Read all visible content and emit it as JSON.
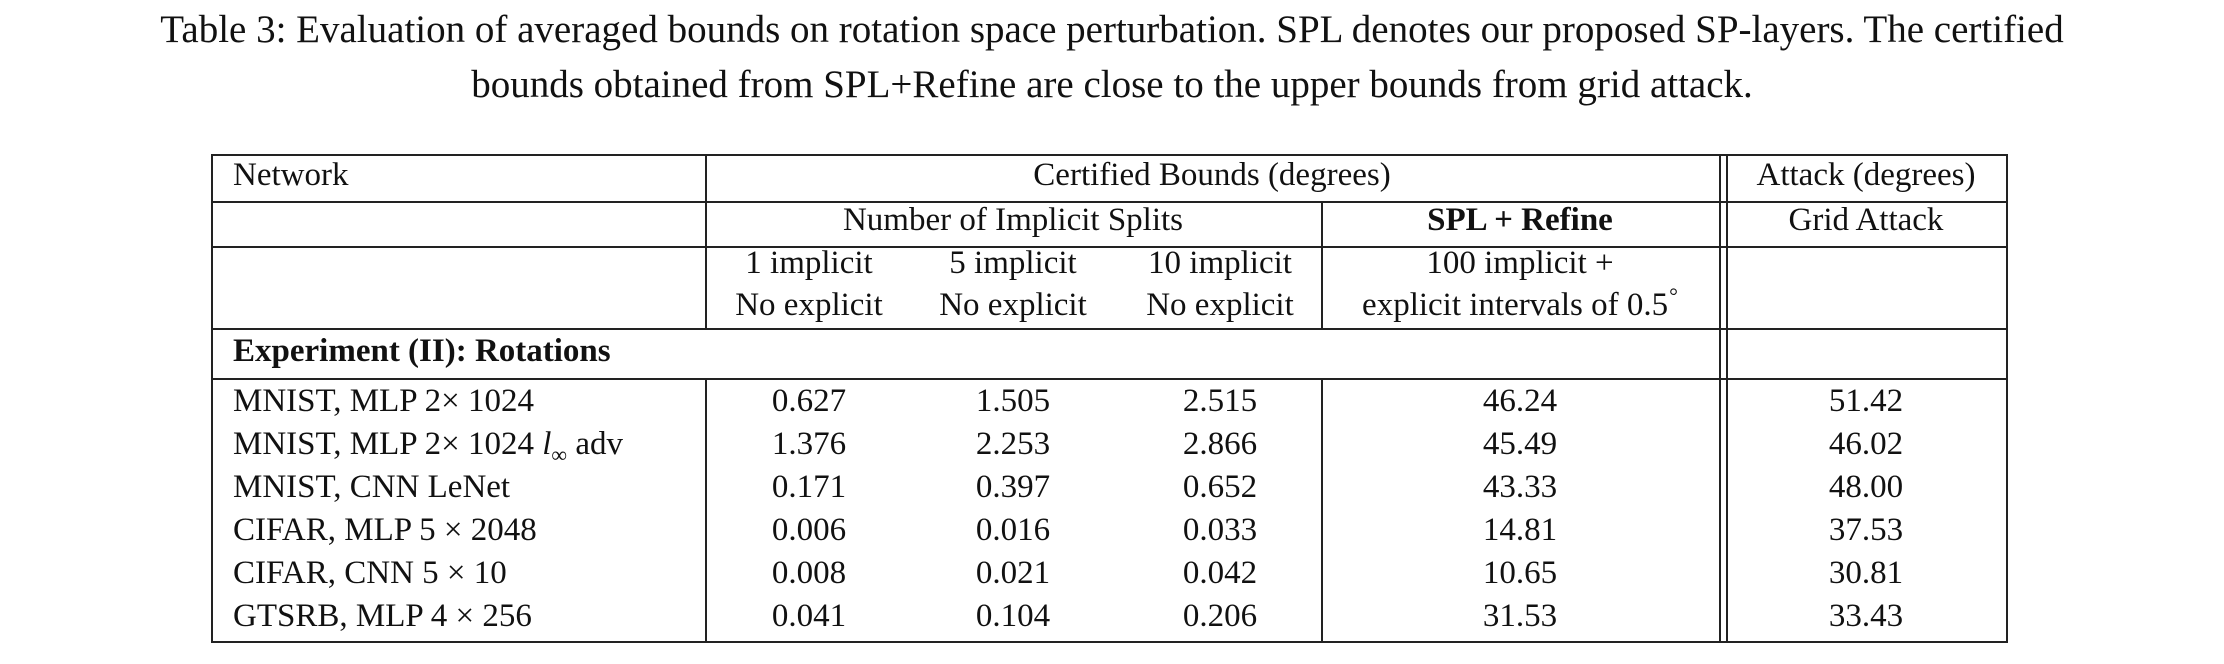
{
  "caption": {
    "line1": "Table 3: Evaluation of averaged bounds on rotation space perturbation. SPL denotes our proposed SP-layers. The certified",
    "line2": "bounds obtained from SPL+Refine are close to the upper bounds from grid attack."
  },
  "header": {
    "network": "Network",
    "certified": "Certified Bounds (degrees)",
    "attack": "Attack (degrees)",
    "implicit_splits": "Number of Implicit Splits",
    "spl_refine": "SPL + Refine",
    "grid_attack": "Grid Attack",
    "col1_line1": "1 implicit",
    "col2_line1": "5 implicit",
    "col3_line1": "10 implicit",
    "no_explicit": "No explicit",
    "col4_line1": "100 implicit +",
    "col4_line2": "explicit intervals of 0.5",
    "degree_sign": "°"
  },
  "section_title": "Experiment (II): Rotations",
  "rows": [
    {
      "network": "MNIST, MLP 2× 1024",
      "v1": "0.627",
      "v2": "1.505",
      "v3": "2.515",
      "spl": "46.24",
      "attack": "51.42"
    },
    {
      "network_prefix": "MNIST, MLP 2× 1024 ",
      "network_l": "l",
      "network_sub": "∞",
      "network_suffix": " adv",
      "v1": "1.376",
      "v2": "2.253",
      "v3": "2.866",
      "spl": "45.49",
      "attack": "46.02"
    },
    {
      "network": "MNIST, CNN LeNet",
      "v1": "0.171",
      "v2": "0.397",
      "v3": "0.652",
      "spl": "43.33",
      "attack": "48.00"
    },
    {
      "network": "CIFAR, MLP 5 × 2048",
      "v1": "0.006",
      "v2": "0.016",
      "v3": "0.033",
      "spl": "14.81",
      "attack": "37.53"
    },
    {
      "network": "CIFAR, CNN 5 × 10",
      "v1": "0.008",
      "v2": "0.021",
      "v3": "0.042",
      "spl": "10.65",
      "attack": "30.81"
    },
    {
      "network": "GTSRB, MLP 4 × 256",
      "v1": "0.041",
      "v2": "0.104",
      "v3": "0.206",
      "spl": "31.53",
      "attack": "33.43"
    }
  ]
}
